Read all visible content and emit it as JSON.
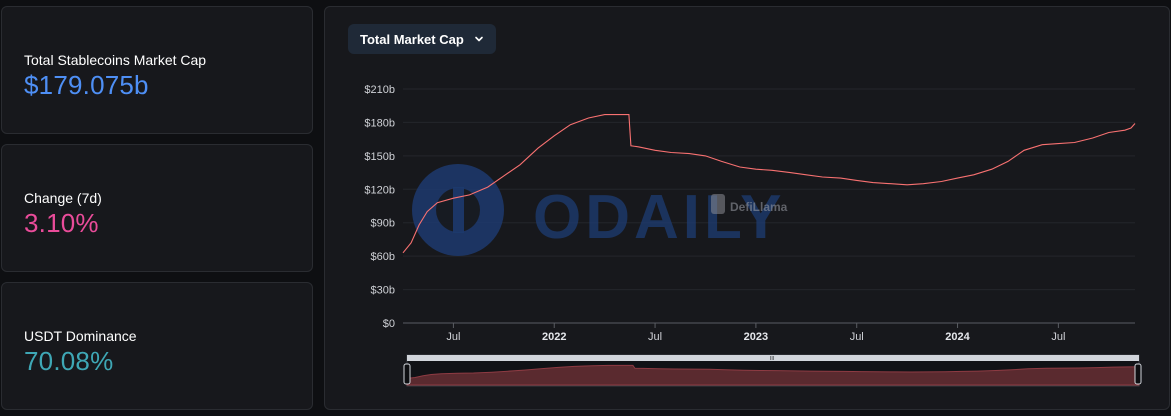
{
  "stats": [
    {
      "label": "Total Stablecoins Market Cap",
      "value": "$179.075b",
      "color": "#4e8ff5"
    },
    {
      "label": "Change (7d)",
      "value": "3.10%",
      "color": "#ea4c9a"
    },
    {
      "label": "USDT Dominance",
      "value": "70.08%",
      "color": "#3ea7b5"
    }
  ],
  "chart_selector": {
    "label": "Total Market Cap",
    "icon": "chevron-down-icon"
  },
  "watermarks": {
    "odaily": "ODAILY",
    "defillama": "DefiLlama"
  },
  "range_handle_label": "III",
  "chart_data": {
    "type": "line",
    "title": "Total Market Cap",
    "ylabel": "",
    "xlabel": "",
    "ylim": [
      0,
      210
    ],
    "yunit": "b",
    "y_ticks": [
      "$0",
      "$30b",
      "$60b",
      "$90b",
      "$120b",
      "$150b",
      "$180b",
      "$210b"
    ],
    "y_tick_values": [
      0,
      30,
      60,
      90,
      120,
      150,
      180,
      210
    ],
    "xlim": [
      2021.25,
      2024.88
    ],
    "x_ticks": [
      {
        "label": "Jul",
        "value": 2021.5,
        "bold": false
      },
      {
        "label": "2022",
        "value": 2022.0,
        "bold": true
      },
      {
        "label": "Jul",
        "value": 2022.5,
        "bold": false
      },
      {
        "label": "2023",
        "value": 2023.0,
        "bold": true
      },
      {
        "label": "Jul",
        "value": 2023.5,
        "bold": false
      },
      {
        "label": "2024",
        "value": 2024.0,
        "bold": true
      },
      {
        "label": "Jul",
        "value": 2024.5,
        "bold": false
      }
    ],
    "line_color": "#f87171",
    "grid": true,
    "series": [
      {
        "name": "Total Market Cap",
        "x": [
          2021.25,
          2021.29,
          2021.33,
          2021.37,
          2021.42,
          2021.5,
          2021.58,
          2021.67,
          2021.75,
          2021.83,
          2021.92,
          2022.0,
          2022.08,
          2022.17,
          2022.25,
          2022.33,
          2022.37,
          2022.38,
          2022.42,
          2022.5,
          2022.58,
          2022.67,
          2022.75,
          2022.83,
          2022.92,
          2023.0,
          2023.08,
          2023.17,
          2023.25,
          2023.33,
          2023.42,
          2023.5,
          2023.58,
          2023.67,
          2023.75,
          2023.83,
          2023.92,
          2024.0,
          2024.08,
          2024.17,
          2024.25,
          2024.33,
          2024.42,
          2024.5,
          2024.58,
          2024.67,
          2024.75,
          2024.83,
          2024.86,
          2024.88
        ],
        "values": [
          63,
          72,
          88,
          100,
          108,
          112,
          115,
          122,
          132,
          142,
          157,
          168,
          178,
          184,
          187,
          187,
          187,
          159,
          158,
          155,
          153,
          152,
          150,
          145,
          140,
          138,
          137,
          135,
          133,
          131,
          130,
          128,
          126,
          125,
          124,
          125,
          127,
          130,
          133,
          138,
          145,
          155,
          160,
          161,
          162,
          166,
          171,
          173,
          175,
          179
        ]
      }
    ]
  }
}
